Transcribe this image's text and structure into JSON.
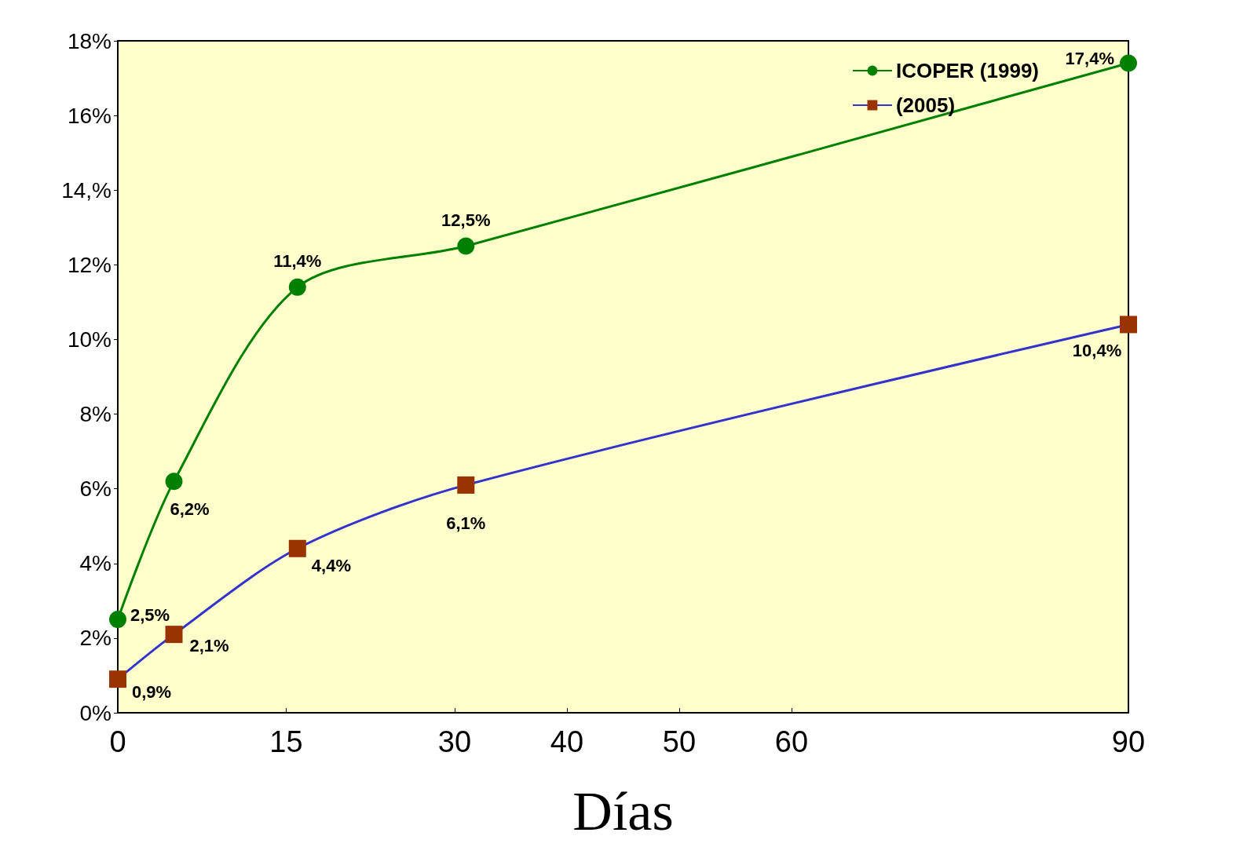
{
  "chart_data": {
    "type": "line",
    "xlabel": "Días",
    "xlim": [
      0,
      90
    ],
    "xticks": [
      0,
      15,
      30,
      40,
      50,
      60,
      90
    ],
    "ylim": [
      0,
      18
    ],
    "yticks": [
      {
        "value": 0,
        "label": "0%"
      },
      {
        "value": 2,
        "label": "2%"
      },
      {
        "value": 4,
        "label": "4%"
      },
      {
        "value": 6,
        "label": "6%"
      },
      {
        "value": 8,
        "label": "8%"
      },
      {
        "value": 10,
        "label": "10%"
      },
      {
        "value": 12,
        "label": "12%"
      },
      {
        "value": 14,
        "label": "14,%"
      },
      {
        "value": 16,
        "label": "16%"
      },
      {
        "value": 18,
        "label": "18%"
      }
    ],
    "series": [
      {
        "name": "ICOPER (1999)",
        "color": "#008000",
        "marker": "circle",
        "x": [
          0,
          5,
          16,
          31,
          90
        ],
        "values": [
          2.5,
          6.2,
          11.4,
          12.5,
          17.4
        ],
        "value_labels": [
          "2,5%",
          "6,2%",
          "11,4%",
          "12,5%",
          "17,4%"
        ]
      },
      {
        "name": "(2005)",
        "color": "#3333cc",
        "colors": [
          "#993300",
          "#993300",
          "#993300",
          "#993300",
          "#993300"
        ],
        "marker": "square",
        "x": [
          0,
          5,
          16,
          31,
          90
        ],
        "values": [
          0.9,
          2.1,
          4.4,
          6.1,
          10.4
        ],
        "value_labels": [
          "0,9%",
          "2,1%",
          "4,4%",
          "6,1%",
          "10,4%"
        ]
      }
    ],
    "grid": false,
    "legend": "top right"
  }
}
